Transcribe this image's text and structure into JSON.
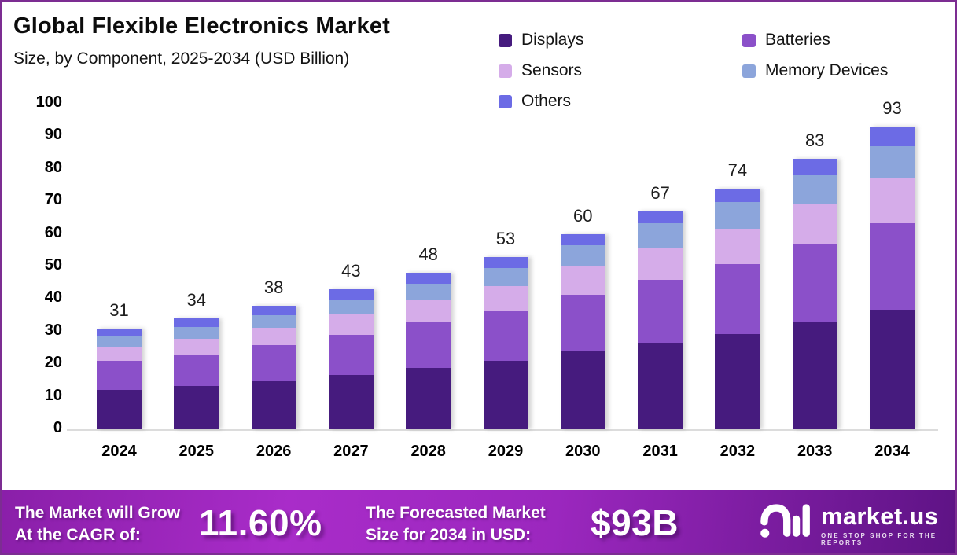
{
  "page": {
    "border_color": "#7C2D92",
    "background": "#ffffff"
  },
  "header": {
    "title": "Global Flexible Electronics Market",
    "subtitle": "Size, by Component, 2025-2034 (USD Billion)"
  },
  "chart_data": {
    "type": "bar",
    "stacked": true,
    "title": "Global Flexible Electronics Market Size, by Component, 2025-2034 (USD Billion)",
    "categories": [
      "2024",
      "2025",
      "2026",
      "2027",
      "2028",
      "2029",
      "2030",
      "2031",
      "2032",
      "2033",
      "2034"
    ],
    "totals": [
      31,
      34,
      38,
      43,
      48,
      53,
      60,
      67,
      74,
      83,
      93
    ],
    "series": [
      {
        "name": "Displays",
        "color": "#461B7E",
        "values": [
          12.0,
          13.2,
          14.8,
          16.7,
          18.9,
          21.0,
          23.8,
          26.5,
          29.3,
          32.8,
          36.6
        ]
      },
      {
        "name": "Batteries",
        "color": "#8B50C9",
        "values": [
          8.9,
          9.8,
          11.0,
          12.4,
          13.9,
          15.2,
          17.4,
          19.4,
          21.4,
          24.0,
          26.8
        ]
      },
      {
        "name": "Sensors",
        "color": "#D5ACE9",
        "values": [
          4.4,
          4.8,
          5.4,
          6.2,
          6.9,
          7.8,
          8.9,
          10.0,
          11.0,
          12.4,
          13.6
        ]
      },
      {
        "name": "Memory Devices",
        "color": "#8CA5DB",
        "values": [
          3.2,
          3.5,
          3.9,
          4.4,
          4.9,
          5.5,
          6.4,
          7.3,
          8.0,
          9.0,
          10.0
        ]
      },
      {
        "name": "Others",
        "color": "#6C6BE5",
        "values": [
          2.5,
          2.7,
          2.9,
          3.3,
          3.4,
          3.5,
          3.5,
          3.8,
          4.3,
          4.8,
          6.0
        ]
      }
    ],
    "xlabel": "",
    "ylabel": "",
    "ylim": [
      0,
      100
    ],
    "ytick_step": 10,
    "grid": false,
    "legend_position": "top-right",
    "axis_line_color": "#dcdcdc",
    "value_labels_shown": true
  },
  "banner": {
    "cagr_label_line1": "The Market will Grow",
    "cagr_label_line2": "At the CAGR of:",
    "cagr_value": "11.60%",
    "forecast_label_line1": "The Forecasted Market",
    "forecast_label_line2": "Size for 2034 in USD:",
    "forecast_value": "$93B",
    "logo_text": "market.us",
    "logo_tagline": "ONE STOP SHOP FOR THE REPORTS"
  }
}
